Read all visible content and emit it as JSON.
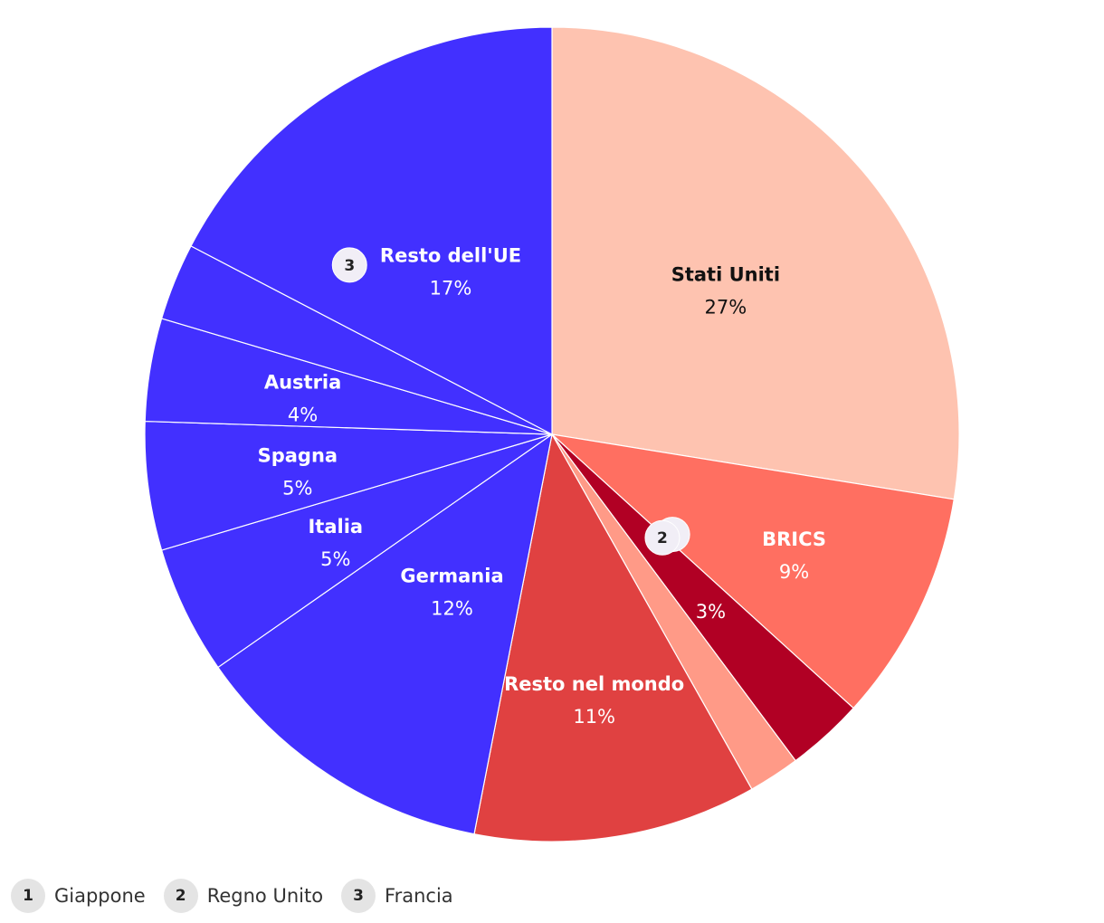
{
  "chart_data": {
    "type": "pie",
    "slices": [
      {
        "label": "Stati Uniti",
        "value": 27,
        "value_label": "27%",
        "color": "#fec3b0",
        "text_color": "#111111"
      },
      {
        "label": "BRICS",
        "value": 9,
        "value_label": "9%",
        "color": "#ff6f61",
        "text_color": "#ffffff"
      },
      {
        "label": "",
        "value": 3,
        "value_label": "3%",
        "marker": "1",
        "color": "#b10024",
        "text_color": "#ffffff"
      },
      {
        "label": "",
        "value": 2,
        "value_label": "",
        "marker": "2",
        "color": "#ff9a87",
        "text_color": "#ffffff"
      },
      {
        "label": "Resto nel mondo",
        "value": 11,
        "value_label": "11%",
        "color": "#e04141",
        "text_color": "#ffffff"
      },
      {
        "label": "Germania",
        "value": 12,
        "value_label": "12%",
        "color": "#4230ff",
        "text_color": "#ffffff"
      },
      {
        "label": "Italia",
        "value": 5,
        "value_label": "5%",
        "color": "#4230ff",
        "text_color": "#ffffff"
      },
      {
        "label": "Spagna",
        "value": 5,
        "value_label": "5%",
        "color": "#4230ff",
        "text_color": "#ffffff"
      },
      {
        "label": "Austria",
        "value": 4,
        "value_label": "4%",
        "color": "#4230ff",
        "text_color": "#ffffff"
      },
      {
        "label": "",
        "value": 3,
        "value_label": "",
        "marker": "3",
        "color": "#4230ff",
        "text_color": "#ffffff"
      },
      {
        "label": "Resto dell'UE",
        "value": 17,
        "value_label": "17%",
        "color": "#4230ff",
        "text_color": "#ffffff"
      }
    ]
  },
  "legend": [
    {
      "number": "1",
      "label": "Giappone"
    },
    {
      "number": "2",
      "label": "Regno Unito"
    },
    {
      "number": "3",
      "label": "Francia"
    }
  ]
}
